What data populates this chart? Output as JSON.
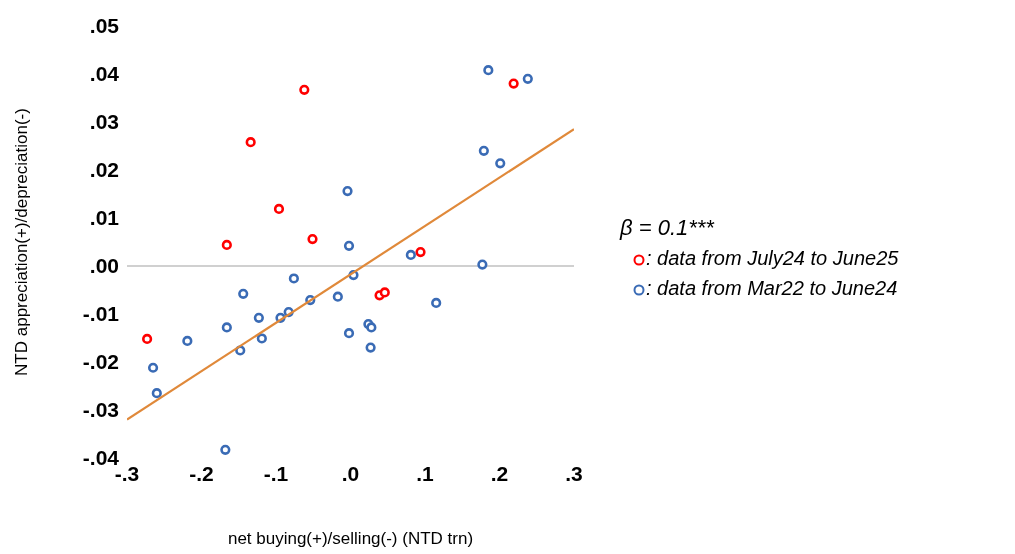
{
  "chart_data": {
    "type": "scatter",
    "xlabel": "net buying(+)/selling(-) (NTD trn)",
    "ylabel": "NTD appreciation(+)/depreciation(-)",
    "xlim": [
      -0.3,
      0.3
    ],
    "xticks": [
      {
        "value": -0.3,
        "label": "-.3"
      },
      {
        "value": -0.2,
        "label": "-.2"
      },
      {
        "value": -0.1,
        "label": "-.1"
      },
      {
        "value": 0,
        "label": ".0"
      },
      {
        "value": 0.1,
        "label": ".1"
      },
      {
        "value": 0.2,
        "label": ".2"
      },
      {
        "value": 0.3,
        "label": ".3"
      }
    ],
    "ylim": [
      -0.04,
      0.05
    ],
    "yticks": [
      {
        "value": -0.04,
        "label": "-.04"
      },
      {
        "value": -0.03,
        "label": "-.03"
      },
      {
        "value": -0.02,
        "label": "-.02"
      },
      {
        "value": -0.01,
        "label": "-.01"
      },
      {
        "value": 0,
        "label": ".00"
      },
      {
        "value": 0.01,
        "label": ".01"
      },
      {
        "value": 0.02,
        "label": ".02"
      },
      {
        "value": 0.03,
        "label": ".03"
      },
      {
        "value": 0.04,
        "label": ".04"
      },
      {
        "value": 0.05,
        "label": ".05"
      }
    ],
    "grid": false,
    "marker": "circle",
    "legend": "right",
    "annotations": [
      "β = 0.1***"
    ],
    "ref_lines": [
      {
        "axis": "y",
        "value": 0,
        "color": "#c0c0c0"
      }
    ],
    "series": [
      {
        "name": ": data from July24 to June25",
        "color": "#ff0000",
        "x": [
          -0.166,
          -0.062,
          -0.134,
          -0.096,
          -0.051,
          0.219,
          0.094,
          -0.273,
          0.039,
          0.046
        ],
        "values": [
          0.0044,
          0.0367,
          0.0258,
          0.0119,
          0.0056,
          0.038,
          0.0029,
          -0.0152,
          -0.0061,
          -0.0055
        ]
      },
      {
        "name": ": data from Mar22 to June24",
        "color": "#3a6bb5",
        "x": [
          0.185,
          0.238,
          0.179,
          0.201,
          -0.004,
          -0.002,
          0.081,
          0.177,
          -0.076,
          0.004,
          -0.144,
          -0.054,
          -0.017,
          0.115,
          -0.123,
          -0.094,
          -0.083,
          -0.166,
          -0.119,
          -0.219,
          -0.148,
          -0.002,
          0.024,
          0.028,
          0.027,
          -0.265,
          -0.26,
          -0.168
        ],
        "values": [
          0.0408,
          0.039,
          0.024,
          0.0214,
          0.0156,
          0.0042,
          0.0023,
          0.0003,
          -0.0026,
          -0.0019,
          -0.0058,
          -0.0071,
          -0.0064,
          -0.0077,
          -0.0108,
          -0.0108,
          -0.0096,
          -0.0128,
          -0.0151,
          -0.0156,
          -0.0176,
          -0.014,
          -0.0121,
          -0.0128,
          -0.017,
          -0.0212,
          -0.0265,
          -0.0383
        ]
      },
      {
        "type": "line",
        "color": "#e0893a",
        "x": [
          -0.3,
          0.3
        ],
        "values": [
          -0.032,
          0.0285
        ],
        "marker": "none"
      }
    ]
  }
}
